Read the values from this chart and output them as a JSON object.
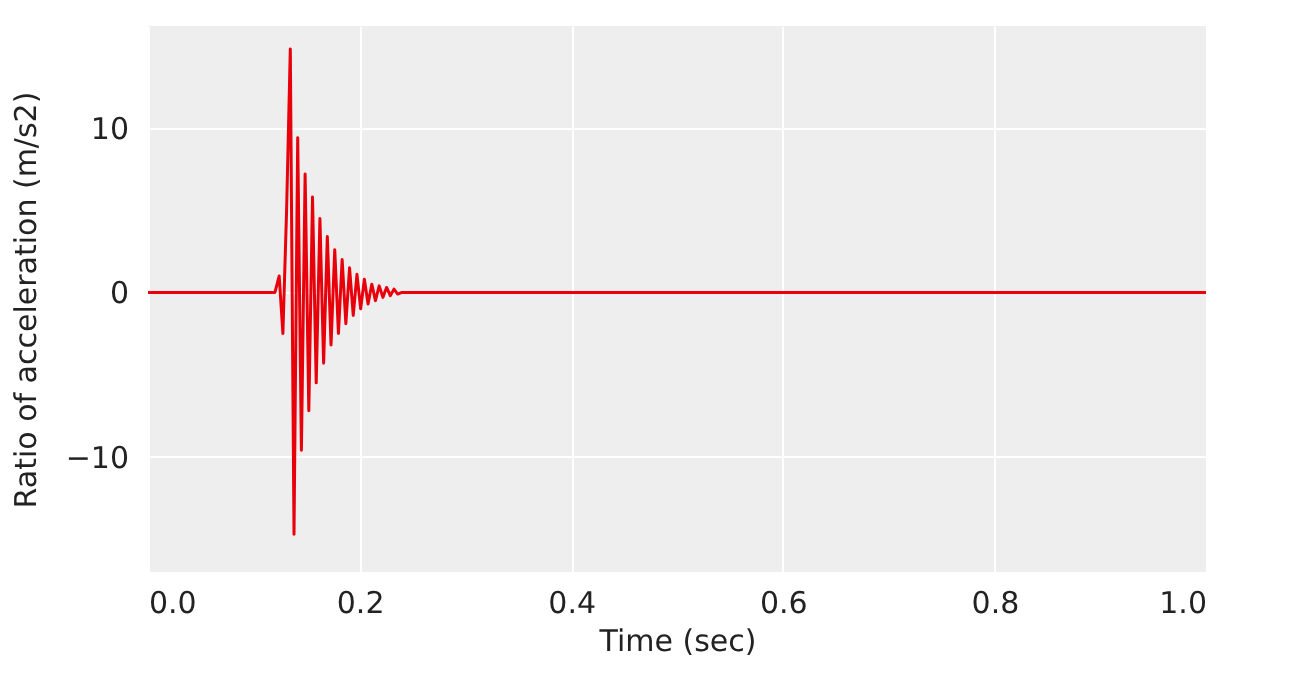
{
  "chart_data": {
    "type": "line",
    "xlabel": "Time (sec)",
    "ylabel": "Ratio of acceleration (m/s2)",
    "x": [
      0.0,
      0.12,
      0.124,
      0.1275,
      0.131,
      0.1345,
      0.138,
      0.1415,
      0.145,
      0.1485,
      0.152,
      0.1555,
      0.159,
      0.1625,
      0.166,
      0.1695,
      0.173,
      0.1765,
      0.18,
      0.1835,
      0.187,
      0.1905,
      0.194,
      0.1975,
      0.201,
      0.2045,
      0.208,
      0.2115,
      0.215,
      0.2185,
      0.222,
      0.2255,
      0.229,
      0.2325,
      0.236,
      0.24,
      1.0
    ],
    "series": [
      {
        "color": "#e8000b",
        "values": [
          0,
          0,
          1,
          -2.5,
          5,
          14.8,
          -14.7,
          9.4,
          -9.6,
          7.2,
          -7.2,
          5.8,
          -5.5,
          4.5,
          -4.3,
          3.4,
          -3.2,
          2.6,
          -2.5,
          2,
          -1.9,
          1.5,
          -1.4,
          1.1,
          -1,
          0.8,
          -0.7,
          0.5,
          -0.5,
          0.4,
          -0.3,
          0.3,
          -0.2,
          0.2,
          -0.1,
          0,
          0
        ]
      }
    ],
    "xlim": [
      0.0,
      1.0
    ],
    "xticks": [
      {
        "value": 0,
        "label": "0.0"
      },
      {
        "value": 0.2,
        "label": "0.2"
      },
      {
        "value": 0.4,
        "label": "0.4"
      },
      {
        "value": 0.6,
        "label": "0.6"
      },
      {
        "value": 0.8,
        "label": "0.8"
      },
      {
        "value": 1.0,
        "label": "1.0"
      }
    ],
    "ylim": [
      -17,
      16.2
    ],
    "yticks": [
      {
        "value": -10,
        "label": "−10"
      },
      0,
      10
    ],
    "grid": true,
    "marker": "none",
    "line_style": "solid"
  }
}
